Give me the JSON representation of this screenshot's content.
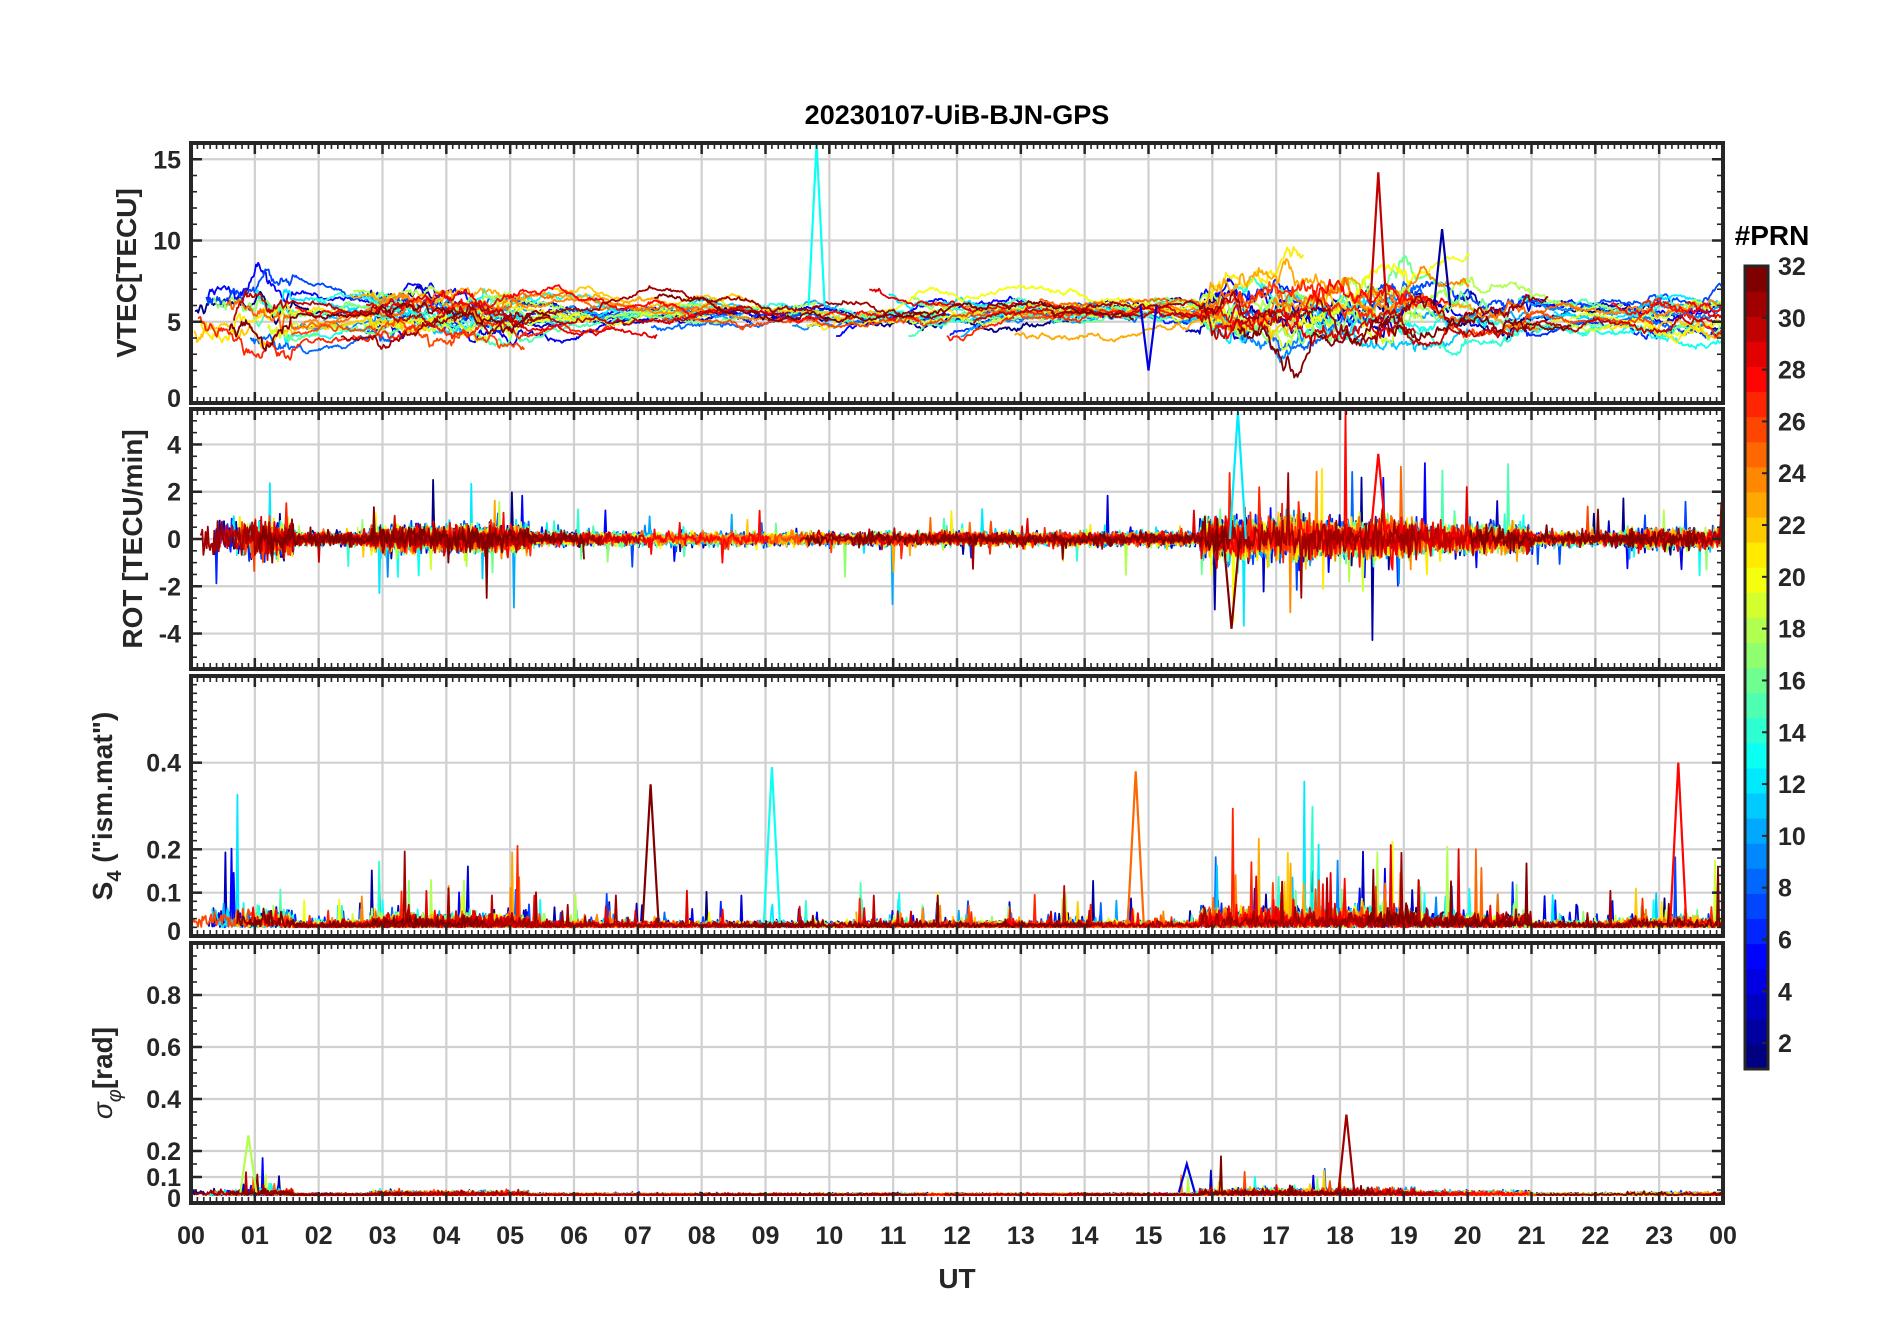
{
  "figure": {
    "title": "20230107-UiB-BJN-GPS",
    "x_axis_label": "UT",
    "x_tick_labels": [
      "00",
      "01",
      "02",
      "03",
      "04",
      "05",
      "06",
      "07",
      "08",
      "09",
      "10",
      "11",
      "12",
      "13",
      "14",
      "15",
      "16",
      "17",
      "18",
      "19",
      "20",
      "21",
      "22",
      "23",
      "00"
    ]
  },
  "colorbar": {
    "title": "#PRN",
    "tick_labels": [
      "2",
      "4",
      "6",
      "8",
      "10",
      "12",
      "14",
      "16",
      "18",
      "20",
      "22",
      "24",
      "26",
      "28",
      "30",
      "32"
    ],
    "range": [
      1,
      32
    ],
    "colormap": "jet"
  },
  "chart_data": [
    {
      "type": "line",
      "panel": "vtec",
      "ylabel": "VTEC[TECU]",
      "ylim": [
        0,
        16
      ],
      "xlim": [
        0,
        24
      ],
      "y_tick_labels": [
        "0",
        "5",
        "10",
        "15"
      ],
      "grid": true,
      "series_note": "one line per satellite PRN 1-32, colored by PRN",
      "baseline": 5.5,
      "features": [
        {
          "prn": 13,
          "peak_ut": 9.8,
          "peak_value": 16
        },
        {
          "prn": 30,
          "peak_ut": 18.6,
          "peak_value": 14.2
        },
        {
          "prn": 2,
          "peak_ut": 19.6,
          "peak_value": 10.7
        },
        {
          "prn": 4,
          "peak_ut": 15.0,
          "peak_value": 2.0
        }
      ]
    },
    {
      "type": "line",
      "panel": "rot",
      "ylabel": "ROT [TECU/min]",
      "ylim": [
        -5.5,
        5.5
      ],
      "xlim": [
        0,
        24
      ],
      "y_tick_labels": [
        "-4",
        "-2",
        "0",
        "2",
        "4"
      ],
      "grid": true,
      "series_note": "one line per satellite PRN 1-32, colored by PRN",
      "features": [
        {
          "prn": 12,
          "peak_ut": 16.4,
          "peak_value": 5.4
        },
        {
          "prn": 32,
          "peak_ut": 16.3,
          "peak_value": -3.8
        },
        {
          "prn": 28,
          "peak_ut": 18.6,
          "peak_value": 3.6
        }
      ]
    },
    {
      "type": "line",
      "panel": "s4",
      "ylabel": "S4 (\"ism.mat\")",
      "ylabel_main": "S",
      "ylabel_sub": "4",
      "ylabel_rest": " (\"ism.mat\")",
      "ylim": [
        0,
        0.6
      ],
      "xlim": [
        0,
        24
      ],
      "y_tick_labels": [
        "0",
        "0.1",
        "0.2",
        "0.4"
      ],
      "grid": true,
      "series_note": "one line per satellite PRN 1-32, colored by PRN",
      "features": [
        {
          "prn": 13,
          "peak_ut": 9.1,
          "peak_value": 0.39
        },
        {
          "prn": 25,
          "peak_ut": 14.8,
          "peak_value": 0.38
        },
        {
          "prn": 28,
          "peak_ut": 23.3,
          "peak_value": 0.4
        },
        {
          "prn": 32,
          "peak_ut": 7.2,
          "peak_value": 0.35
        }
      ]
    },
    {
      "type": "line",
      "panel": "sigma_phi",
      "ylabel": "σφ[rad]",
      "ylabel_main": "σ",
      "ylabel_sub": "φ",
      "ylabel_rest": "[rad]",
      "ylim": [
        0,
        1.0
      ],
      "xlim": [
        0,
        24
      ],
      "y_tick_labels": [
        "0",
        "0.1",
        "0.2",
        "0.4",
        "0.6",
        "0.8"
      ],
      "grid": true,
      "series_note": "one line per satellite PRN 1-32, colored by PRN",
      "features": [
        {
          "prn": 18,
          "peak_ut": 0.9,
          "peak_value": 0.26
        },
        {
          "prn": 31,
          "peak_ut": 18.1,
          "peak_value": 0.34
        },
        {
          "prn": 4,
          "peak_ut": 15.6,
          "peak_value": 0.15
        }
      ]
    }
  ]
}
